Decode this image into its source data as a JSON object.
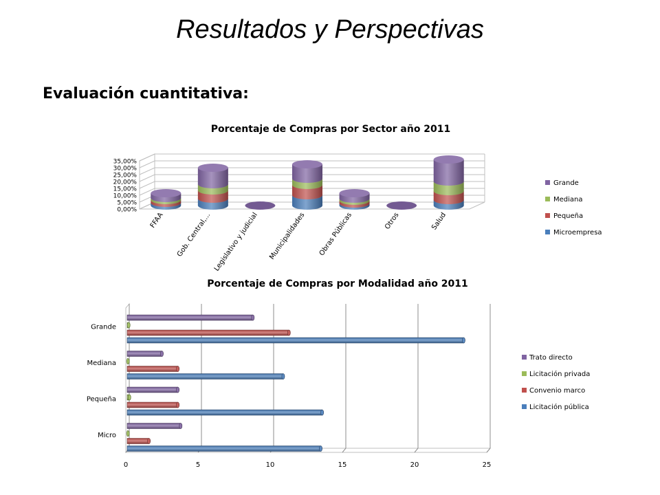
{
  "slide": {
    "title": "Resultados y Perspectivas",
    "subtitle": "Evaluación cuantitativa:"
  },
  "colors": {
    "Microempresa": "#4a7ebb",
    "Pequeña": "#c0504d",
    "Mediana": "#9bbb59",
    "Grande": "#8064a2",
    "Licitación pública": "#4a7ebb",
    "Convenio marco": "#c0504d",
    "Licitación privada": "#9bbb59",
    "Trato directo": "#8064a2"
  },
  "chart_data": [
    {
      "type": "bar",
      "stacked": true,
      "orientation": "vertical",
      "style": "3d-cylinder",
      "title": "Porcentaje de Compras por Sector año 2011",
      "categories": [
        "FFAA",
        "Gob. Central,...",
        "Legislativo y judicial",
        "Municipalidades",
        "Obras Públicas",
        "Otros",
        "Salud"
      ],
      "series": [
        {
          "name": "Microempresa",
          "values": [
            2.0,
            5.0,
            0.0,
            7.5,
            1.5,
            0.0,
            4.0
          ]
        },
        {
          "name": "Pequeña",
          "values": [
            2.0,
            6.0,
            0.0,
            7.5,
            2.0,
            0.0,
            6.5
          ]
        },
        {
          "name": "Mediana",
          "values": [
            1.5,
            4.5,
            0.0,
            4.5,
            1.5,
            0.0,
            7.0
          ]
        },
        {
          "name": "Grande",
          "values": [
            3.5,
            12.0,
            0.0,
            10.5,
            4.0,
            0.0,
            16.0
          ]
        }
      ],
      "y_ticks": [
        "0,00%",
        "5,00%",
        "10,00%",
        "15,00%",
        "20,00%",
        "25,00%",
        "30,00%",
        "35,00%"
      ],
      "ylim": [
        0,
        35
      ],
      "grid": true,
      "legend": "right"
    },
    {
      "type": "bar",
      "orientation": "horizontal",
      "style": "3d-cylinder",
      "title": "Porcentaje de Compras por Modalidad año 2011",
      "categories": [
        "Micro",
        "Pequeña",
        "Mediana",
        "Grande"
      ],
      "series": [
        {
          "name": "Licitación pública",
          "values": [
            13.5,
            13.6,
            10.9,
            23.4
          ]
        },
        {
          "name": "Convenio marco",
          "values": [
            1.6,
            3.6,
            3.6,
            11.3
          ]
        },
        {
          "name": "Licitación privada",
          "values": [
            0.15,
            0.25,
            0.15,
            0.2
          ]
        },
        {
          "name": "Trato directo",
          "values": [
            3.8,
            3.6,
            2.5,
            8.8
          ]
        }
      ],
      "x_ticks": [
        "0",
        "5",
        "10",
        "15",
        "20",
        "25"
      ],
      "xlim": [
        0,
        25
      ],
      "grid": true,
      "legend": "right"
    }
  ]
}
